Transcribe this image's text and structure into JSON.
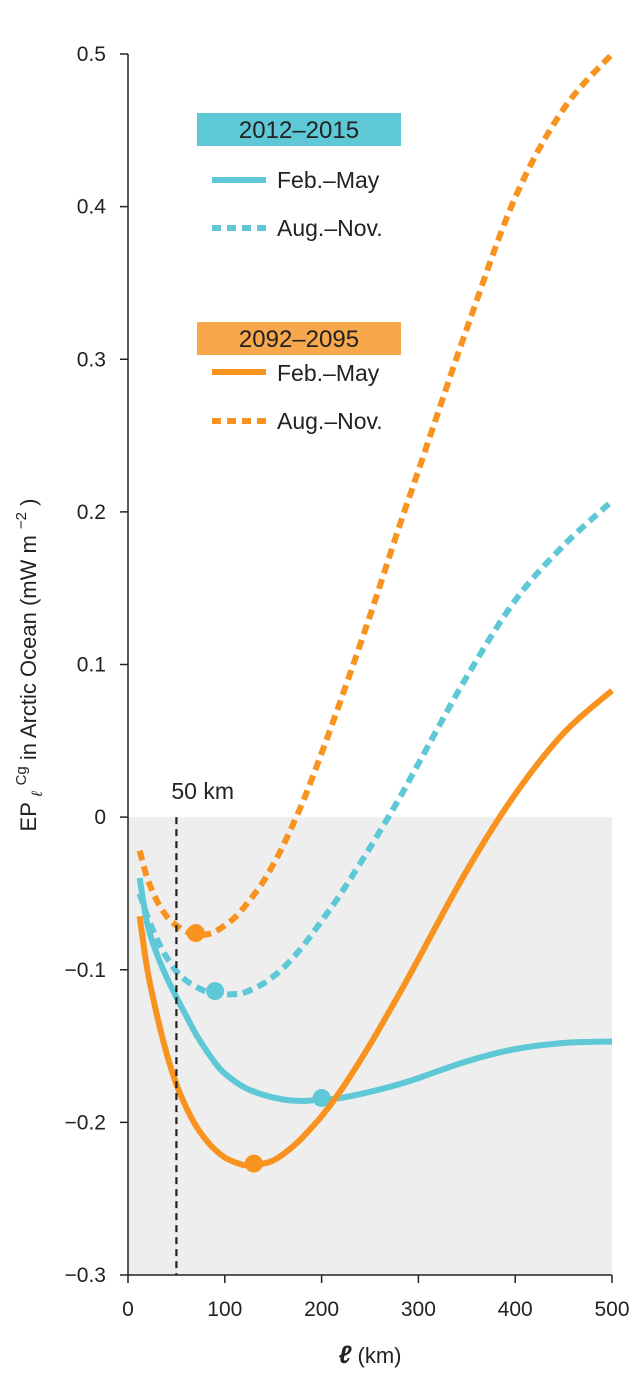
{
  "chart_data": {
    "type": "line",
    "title": "",
    "xlabel": "ℓ (km)",
    "ylabel": "EPℓCg in Arctic Ocean (mW m−2)",
    "ylabel_parts": {
      "base": "EP",
      "subscript": "ℓ",
      "superscript": "Cg",
      "rest": " in Arctic Ocean (mW m",
      "unit_sup": "−2",
      "close": ")"
    },
    "xlabel_parts": {
      "symbol": "ℓ",
      "unit": "(km)"
    },
    "xlim": [
      0,
      500
    ],
    "ylim": [
      -0.3,
      0.5
    ],
    "xticks": [
      0,
      100,
      200,
      300,
      400,
      500
    ],
    "xtick_labels": [
      "0",
      "100",
      "200",
      "300",
      "400",
      "500"
    ],
    "yticks": [
      -0.3,
      -0.2,
      -0.1,
      0,
      0.1,
      0.2,
      0.3,
      0.4,
      0.5
    ],
    "ytick_labels": [
      "−0.3",
      "−0.2",
      "−0.1",
      "0",
      "0.1",
      "0.2",
      "0.3",
      "0.4",
      "0.5"
    ],
    "shaded_region": {
      "y_from": -0.3,
      "y_to": 0,
      "color": "#eeeeee"
    },
    "annotation": {
      "x": 50,
      "text": "50 km"
    },
    "legend": {
      "placement": "top-left",
      "groups": [
        {
          "header": "2012–2015",
          "color": "#5ec8d6",
          "entries": [
            "Feb.–May",
            "Aug.–Nov."
          ]
        },
        {
          "header": "2092–2095",
          "color": "#f7a84d",
          "entries": [
            "Feb.–May",
            "Aug.–Nov."
          ]
        }
      ]
    },
    "series": [
      {
        "name": "Feb.–May",
        "group": "2012–2015",
        "color": "#5ec8d6",
        "dash": "solid",
        "x": [
          12,
          20,
          30,
          40,
          50,
          60,
          70,
          80,
          90,
          100,
          120,
          140,
          160,
          180,
          200,
          220,
          250,
          280,
          300,
          350,
          400,
          450,
          500
        ],
        "y": [
          -0.04,
          -0.07,
          -0.09,
          -0.105,
          -0.118,
          -0.13,
          -0.142,
          -0.152,
          -0.161,
          -0.168,
          -0.177,
          -0.182,
          -0.185,
          -0.186,
          -0.185,
          -0.184,
          -0.18,
          -0.175,
          -0.171,
          -0.16,
          -0.152,
          -0.148,
          -0.147
        ],
        "marker": {
          "x": 200,
          "y": -0.184
        }
      },
      {
        "name": "Aug.–Nov.",
        "group": "2012–2015",
        "color": "#5ec8d6",
        "dash": "dashed",
        "x": [
          12,
          20,
          30,
          40,
          50,
          60,
          70,
          80,
          90,
          100,
          110,
          120,
          140,
          160,
          180,
          200,
          220,
          250,
          280,
          300,
          350,
          400,
          450,
          500
        ],
        "y": [
          -0.05,
          -0.065,
          -0.08,
          -0.092,
          -0.101,
          -0.107,
          -0.111,
          -0.114,
          -0.115,
          -0.116,
          -0.116,
          -0.115,
          -0.109,
          -0.099,
          -0.085,
          -0.068,
          -0.05,
          -0.02,
          0.012,
          0.035,
          0.092,
          0.142,
          0.178,
          0.207
        ],
        "marker": {
          "x": 90,
          "y": -0.114
        }
      },
      {
        "name": "Feb.–May",
        "group": "2092–2095",
        "color": "#f7931e",
        "dash": "solid",
        "x": [
          12,
          20,
          30,
          40,
          50,
          60,
          70,
          80,
          90,
          100,
          110,
          120,
          130,
          140,
          150,
          160,
          170,
          180,
          200,
          220,
          250,
          280,
          300,
          350,
          400,
          450,
          500
        ],
        "y": [
          -0.065,
          -0.1,
          -0.13,
          -0.155,
          -0.175,
          -0.19,
          -0.202,
          -0.211,
          -0.218,
          -0.223,
          -0.226,
          -0.228,
          -0.228,
          -0.227,
          -0.225,
          -0.221,
          -0.216,
          -0.21,
          -0.196,
          -0.179,
          -0.149,
          -0.116,
          -0.093,
          -0.035,
          0.015,
          0.055,
          0.083
        ],
        "marker": {
          "x": 130,
          "y": -0.227
        }
      },
      {
        "name": "Aug.–Nov.",
        "group": "2092–2095",
        "color": "#f7931e",
        "dash": "dashed",
        "x": [
          12,
          20,
          30,
          40,
          50,
          60,
          70,
          80,
          90,
          100,
          110,
          120,
          130,
          140,
          150,
          160,
          180,
          200,
          220,
          250,
          280,
          300,
          350,
          400,
          450,
          500
        ],
        "y": [
          -0.022,
          -0.04,
          -0.055,
          -0.065,
          -0.071,
          -0.075,
          -0.077,
          -0.077,
          -0.075,
          -0.071,
          -0.066,
          -0.059,
          -0.051,
          -0.042,
          -0.031,
          -0.019,
          0.009,
          0.042,
          0.077,
          0.132,
          0.19,
          0.227,
          0.32,
          0.406,
          0.464,
          0.5
        ],
        "marker": {
          "x": 70,
          "y": -0.076
        }
      }
    ]
  }
}
